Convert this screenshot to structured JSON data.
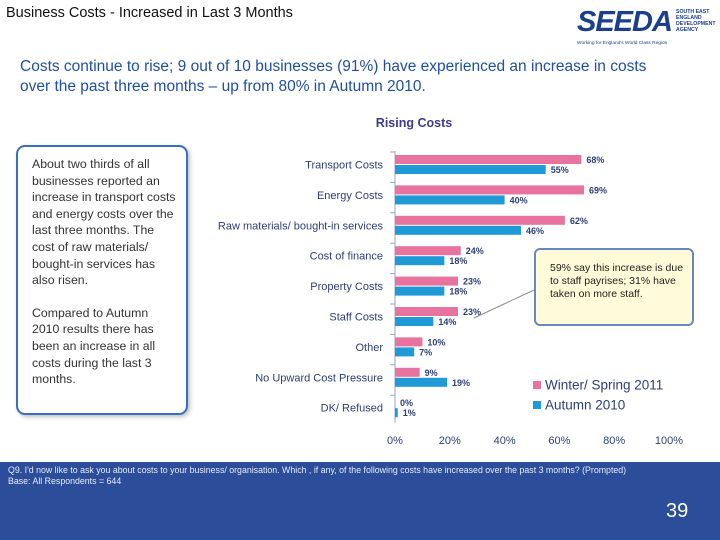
{
  "page": {
    "title": "Business Costs - Increased in Last 3 Months",
    "headline": "Costs continue to rise; 9 out of 10 businesses (91%) have experienced an increase in costs over the past three months – up from 80% in Autumn 2010.",
    "page_number": "39"
  },
  "logo": {
    "word": "SEEDA",
    "side_text": "SOUTH EAST ENGLAND DEVELOPMENT AGENCY",
    "tagline": "Working for England's World Class Region"
  },
  "note": {
    "paragraph1": "About two thirds of all businesses reported an increase in transport costs and energy costs over the last three months.  The cost of raw materials/ bought-in services has also risen.",
    "paragraph2": "Compared to Autumn 2010 results there has been an increase in all costs during the last 3 months."
  },
  "callout": {
    "text": "59% say this increase is due to staff payrises; 31% have taken on more staff."
  },
  "footer": {
    "question": "Q9. I'd now like to ask you about costs to your business/ organisation. Which , if any, of the following costs have increased over the past 3 months? (Prompted)",
    "base": "Base: All Respondents = 644"
  },
  "chart_data": {
    "type": "bar",
    "orientation": "horizontal",
    "title": "Rising Costs",
    "categories": [
      "Transport Costs",
      "Energy Costs",
      "Raw materials/ bought-in services",
      "Cost of finance",
      "Property Costs",
      "Staff Costs",
      "Other",
      "No Upward Cost Pressure",
      "DK/ Refused"
    ],
    "series": [
      {
        "name": "Winter/ Spring 2011",
        "color": "#e8739f",
        "values": [
          68,
          69,
          62,
          24,
          23,
          23,
          10,
          9,
          0
        ],
        "labels": [
          "68%",
          "69%",
          "62%",
          "24%",
          "23%",
          "23%",
          "10%",
          "9%",
          "0%"
        ]
      },
      {
        "name": "Autumn 2010",
        "color": "#1f9ad6",
        "values": [
          55,
          40,
          46,
          18,
          18,
          14,
          7,
          19,
          1
        ],
        "labels": [
          "55%",
          "40%",
          "46%",
          "18%",
          "18%",
          "14%",
          "7%",
          "19%",
          "1%"
        ]
      }
    ],
    "xlim": [
      0,
      100
    ],
    "xticks": [
      "0%",
      "20%",
      "40%",
      "60%",
      "80%",
      "100%"
    ],
    "xtick_values": [
      0,
      20,
      40,
      60,
      80,
      100
    ],
    "legend_position": "bottom-right"
  }
}
